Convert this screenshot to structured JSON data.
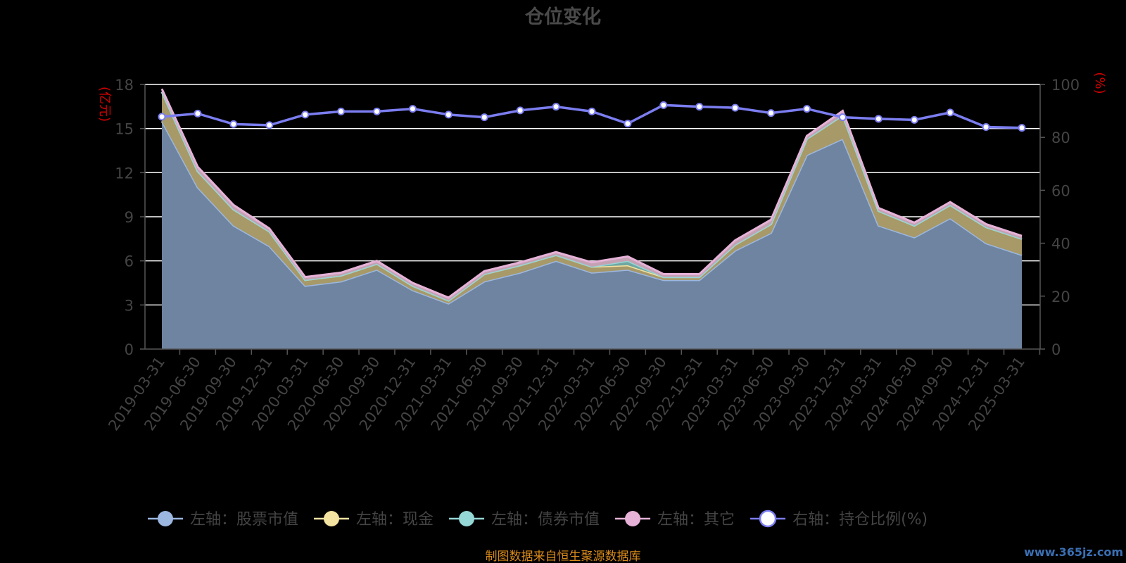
{
  "chart_data": {
    "type": "area",
    "title": "仓位变化",
    "left_axis_unit": "(亿元)",
    "right_axis_unit": "(%)",
    "categories": [
      "2019-03-31",
      "2019-06-30",
      "2019-09-30",
      "2019-12-31",
      "2020-03-31",
      "2020-06-30",
      "2020-09-30",
      "2020-12-31",
      "2021-03-31",
      "2021-06-30",
      "2021-09-30",
      "2021-12-31",
      "2022-03-31",
      "2022-06-30",
      "2022-09-30",
      "2022-12-31",
      "2023-03-31",
      "2023-06-30",
      "2023-09-30",
      "2023-12-31",
      "2024-03-31",
      "2024-06-30",
      "2024-09-30",
      "2024-12-31",
      "2025-03-31"
    ],
    "left_ylim": [
      0,
      18
    ],
    "left_ticks": [
      "0",
      "3",
      "6",
      "9",
      "12",
      "15",
      "18"
    ],
    "right_ylim": [
      0,
      100
    ],
    "right_ticks": [
      "0",
      "20",
      "40",
      "60",
      "80",
      "100"
    ],
    "grid": true,
    "legend_position": "bottom",
    "series": [
      {
        "name": "左轴：股票市值",
        "axis": "left",
        "stack": true,
        "color": "#9cb7e0",
        "values": [
          15.5,
          11.0,
          8.4,
          7.0,
          4.3,
          4.6,
          5.4,
          4.0,
          3.1,
          4.6,
          5.2,
          6.0,
          5.2,
          5.4,
          4.7,
          4.7,
          6.7,
          7.9,
          13.2,
          14.3,
          8.4,
          7.6,
          8.9,
          7.2,
          6.4
        ]
      },
      {
        "name": "左轴：现金",
        "axis": "left",
        "stack": true,
        "color": "#f5e3a1",
        "values": [
          2.0,
          1.1,
          1.1,
          1.0,
          0.4,
          0.4,
          0.4,
          0.3,
          0.2,
          0.5,
          0.5,
          0.4,
          0.4,
          0.3,
          0.2,
          0.2,
          0.4,
          0.6,
          1.1,
          1.6,
          1.0,
          0.8,
          0.9,
          1.1,
          1.1
        ]
      },
      {
        "name": "左轴：债券市值",
        "axis": "left",
        "stack": true,
        "color": "#95d7d6",
        "values": [
          0,
          0,
          0,
          0,
          0,
          0,
          0,
          0,
          0,
          0,
          0,
          0,
          0,
          0.3,
          0,
          0,
          0,
          0,
          0,
          0,
          0,
          0,
          0,
          0,
          0
        ]
      },
      {
        "name": "左轴：其它",
        "axis": "left",
        "stack": true,
        "color": "#e6b2d8",
        "values": [
          0.2,
          0.3,
          0.3,
          0.2,
          0.2,
          0.2,
          0.2,
          0.2,
          0.2,
          0.2,
          0.2,
          0.2,
          0.3,
          0.3,
          0.2,
          0.2,
          0.3,
          0.3,
          0.2,
          0.3,
          0.2,
          0.2,
          0.2,
          0.2,
          0.2
        ]
      },
      {
        "name": "右轴：持仓比例(%)",
        "axis": "right",
        "type": "line",
        "color": "#7b7df0",
        "values": [
          87.8,
          89.0,
          85.0,
          84.6,
          88.6,
          89.8,
          89.8,
          90.8,
          88.6,
          87.6,
          90.2,
          91.6,
          89.8,
          85.2,
          92.2,
          91.6,
          91.2,
          89.2,
          90.8,
          87.6,
          87.0,
          86.6,
          89.4,
          83.9,
          83.6
        ]
      }
    ]
  },
  "source_text": "制图数据来自恒生聚源数据库",
  "watermark": "www.365jz.com"
}
